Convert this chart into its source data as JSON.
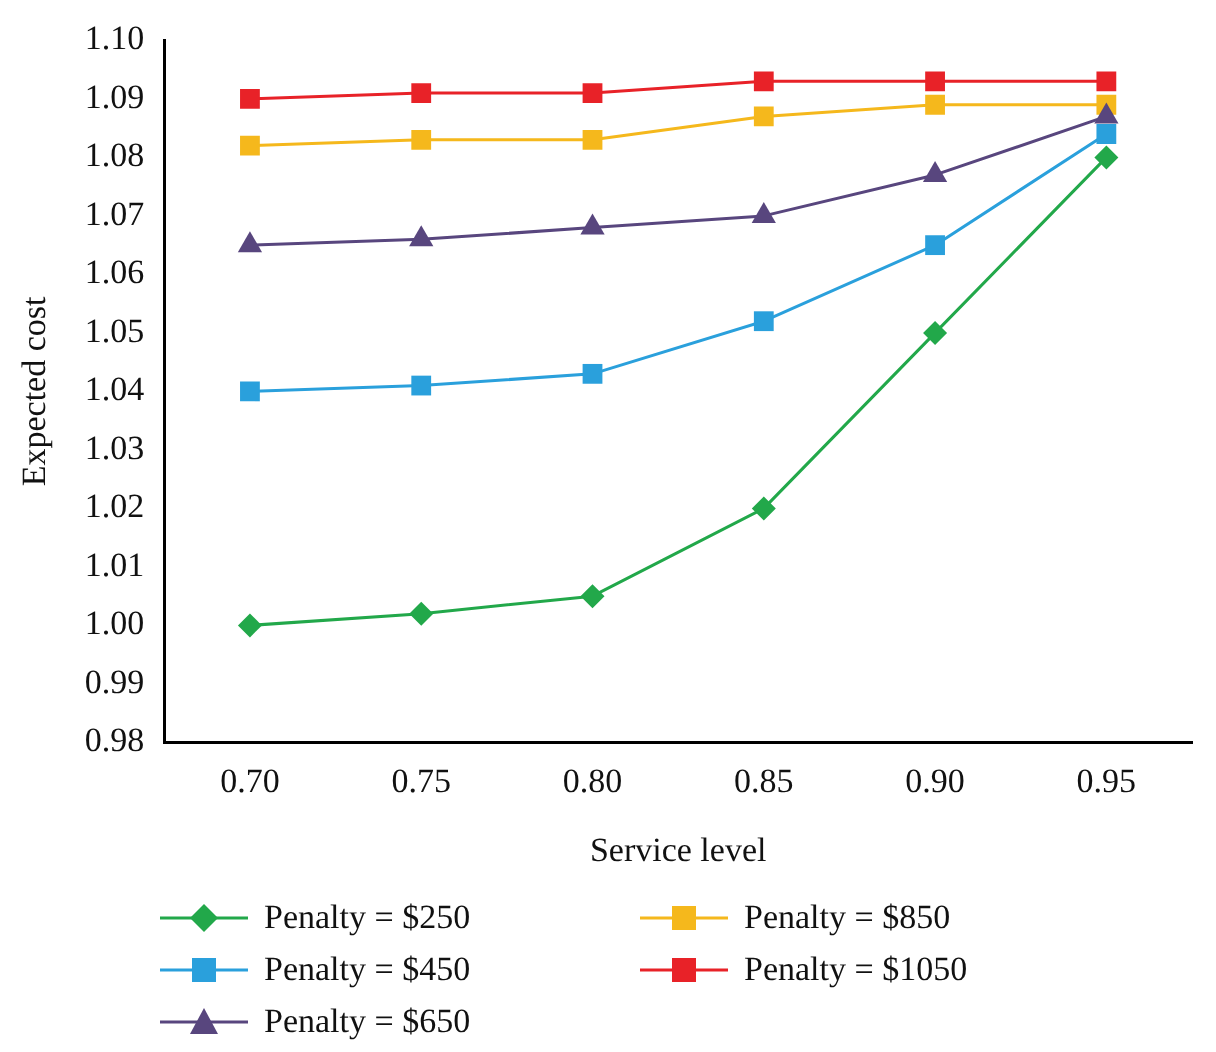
{
  "chart_data": {
    "type": "line",
    "xlabel": "Service level",
    "ylabel": "Expected cost",
    "categories": [
      "0.70",
      "0.75",
      "0.80",
      "0.85",
      "0.90",
      "0.95"
    ],
    "ylim": [
      0.98,
      1.1
    ],
    "yticks": [
      {
        "value": 0.98,
        "label": "0.98"
      },
      {
        "value": 0.99,
        "label": "0.99"
      },
      {
        "value": 1.0,
        "label": "1.00"
      },
      {
        "value": 1.01,
        "label": "1.01"
      },
      {
        "value": 1.02,
        "label": "1.02"
      },
      {
        "value": 1.03,
        "label": "1.03"
      },
      {
        "value": 1.04,
        "label": "1.04"
      },
      {
        "value": 1.05,
        "label": "1.05"
      },
      {
        "value": 1.06,
        "label": "1.06"
      },
      {
        "value": 1.07,
        "label": "1.07"
      },
      {
        "value": 1.08,
        "label": "1.08"
      },
      {
        "value": 1.09,
        "label": "1.09"
      },
      {
        "value": 1.1,
        "label": "1.10"
      }
    ],
    "grid": false,
    "legend": "bottom",
    "line_style": "solid",
    "series": [
      {
        "name": "Penalty = $250",
        "color": "#22a84a",
        "marker": "diamond",
        "values": [
          1.0,
          1.002,
          1.005,
          1.02,
          1.05,
          1.08
        ]
      },
      {
        "name": "Penalty = $450",
        "color": "#2aa0dc",
        "marker": "square",
        "values": [
          1.04,
          1.041,
          1.043,
          1.052,
          1.065,
          1.084
        ]
      },
      {
        "name": "Penalty = $650",
        "color": "#58467e",
        "marker": "triangle",
        "values": [
          1.065,
          1.066,
          1.068,
          1.07,
          1.077,
          1.087
        ]
      },
      {
        "name": "Penalty = $850",
        "color": "#f5b81c",
        "marker": "square",
        "values": [
          1.082,
          1.083,
          1.083,
          1.087,
          1.089,
          1.089
        ]
      },
      {
        "name": "Penalty = $1050",
        "color": "#e82228",
        "marker": "square",
        "values": [
          1.09,
          1.091,
          1.091,
          1.093,
          1.093,
          1.093
        ]
      }
    ]
  }
}
